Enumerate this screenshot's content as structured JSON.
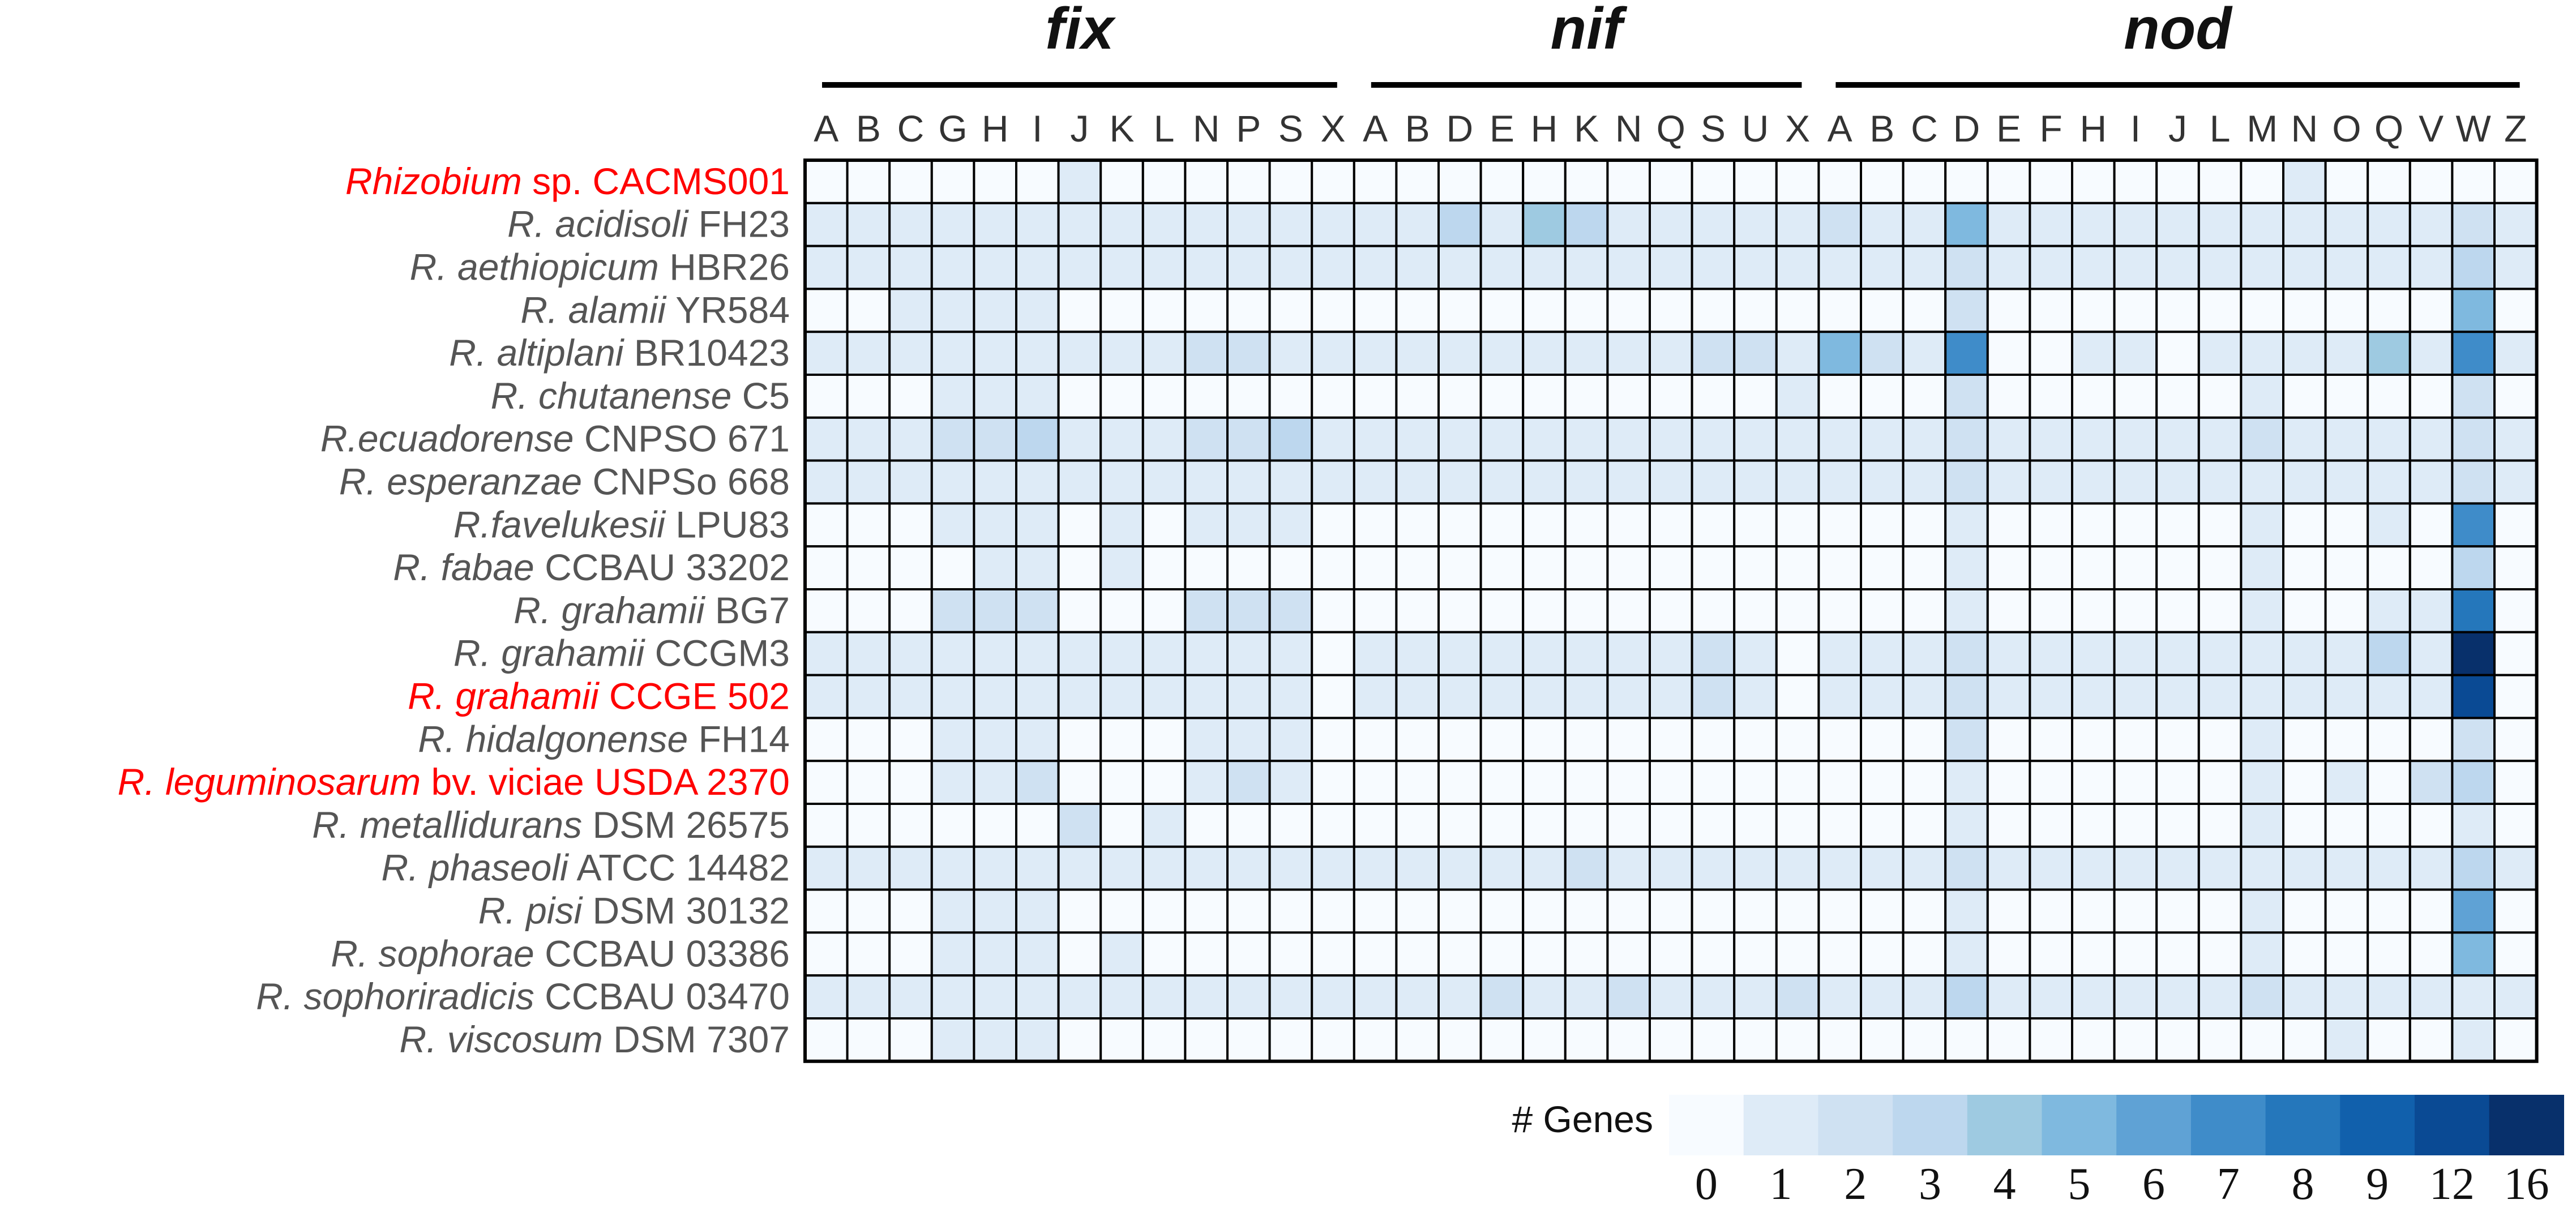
{
  "chart_data": {
    "type": "heatmap",
    "groups": [
      {
        "label": "fix",
        "genes": [
          "A",
          "B",
          "C",
          "G",
          "H",
          "I",
          "J",
          "K",
          "L",
          "N",
          "P",
          "S",
          "X"
        ]
      },
      {
        "label": "nif",
        "genes": [
          "A",
          "B",
          "D",
          "E",
          "H",
          "K",
          "N",
          "Q",
          "S",
          "U",
          "X"
        ]
      },
      {
        "label": "nod",
        "genes": [
          "A",
          "B",
          "C",
          "D",
          "E",
          "F",
          "H",
          "I",
          "J",
          "L",
          "M",
          "N",
          "O",
          "Q",
          "V",
          "W",
          "Z"
        ]
      }
    ],
    "rows": [
      {
        "name": "Rhizobium",
        "strain": "sp. CACMS001",
        "highlight": true
      },
      {
        "name": "R. acidisoli",
        "strain": "FH23",
        "highlight": false
      },
      {
        "name": "R. aethiopicum",
        "strain": "HBR26",
        "highlight": false
      },
      {
        "name": "R. alamii",
        "strain": "YR584",
        "highlight": false
      },
      {
        "name": "R. altiplani",
        "strain": "BR10423",
        "highlight": false
      },
      {
        "name": "R. chutanense",
        "strain": "C5",
        "highlight": false
      },
      {
        "name": "R.ecuadorense",
        "strain": "CNPSO 671",
        "highlight": false
      },
      {
        "name": "R. esperanzae",
        "strain": "CNPSo 668",
        "highlight": false
      },
      {
        "name": "R.favelukesii",
        "strain": "LPU83",
        "highlight": false
      },
      {
        "name": "R. fabae",
        "strain": "CCBAU 33202",
        "highlight": false
      },
      {
        "name": "R. grahamii",
        "strain": "BG7",
        "highlight": false
      },
      {
        "name": "R. grahamii",
        "strain": "CCGM3",
        "highlight": false
      },
      {
        "name": "R. grahamii",
        "strain": "CCGE 502",
        "highlight": true
      },
      {
        "name": "R. hidalgonense",
        "strain": "FH14",
        "highlight": false
      },
      {
        "name": "R. leguminosarum",
        "strain": "bv. viciae USDA 2370",
        "highlight": true
      },
      {
        "name": "R. metallidurans",
        "strain": "DSM 26575",
        "highlight": false
      },
      {
        "name": "R. phaseoli",
        "strain": "ATCC 14482",
        "highlight": false
      },
      {
        "name": "R. pisi",
        "strain": "DSM 30132",
        "highlight": false
      },
      {
        "name": "R. sophorae",
        "strain": "CCBAU 03386",
        "highlight": false
      },
      {
        "name": "R. sophoriradicis",
        "strain": "CCBAU 03470",
        "highlight": false
      },
      {
        "name": "R. viscosum",
        "strain": "DSM 7307",
        "highlight": false
      }
    ],
    "values": [
      [
        0,
        0,
        0,
        0,
        0,
        0,
        1,
        0,
        0,
        0,
        0,
        0,
        0,
        0,
        0,
        0,
        0,
        0,
        0,
        0,
        0,
        0,
        0,
        0,
        0,
        0,
        0,
        0,
        0,
        0,
        0,
        0,
        0,
        0,
        0,
        1,
        0,
        0,
        0,
        0,
        0
      ],
      [
        1,
        1,
        1,
        1,
        1,
        1,
        1,
        1,
        1,
        1,
        1,
        1,
        1,
        1,
        1,
        3,
        1,
        4,
        3,
        1,
        1,
        1,
        1,
        1,
        2,
        1,
        1,
        5,
        1,
        1,
        1,
        1,
        1,
        1,
        1,
        1,
        1,
        1,
        1,
        2,
        1
      ],
      [
        1,
        1,
        1,
        1,
        1,
        1,
        1,
        1,
        1,
        1,
        1,
        1,
        1,
        1,
        1,
        1,
        1,
        1,
        1,
        1,
        1,
        1,
        1,
        1,
        1,
        1,
        1,
        2,
        1,
        1,
        1,
        1,
        1,
        1,
        1,
        1,
        1,
        1,
        1,
        3,
        1
      ],
      [
        0,
        0,
        1,
        1,
        1,
        1,
        0,
        0,
        0,
        0,
        0,
        0,
        0,
        0,
        0,
        0,
        0,
        0,
        0,
        0,
        0,
        0,
        0,
        0,
        0,
        0,
        0,
        2,
        0,
        0,
        0,
        0,
        0,
        0,
        0,
        0,
        0,
        0,
        0,
        5,
        0
      ],
      [
        1,
        1,
        1,
        1,
        1,
        1,
        1,
        1,
        1,
        2,
        2,
        1,
        1,
        1,
        1,
        1,
        1,
        1,
        1,
        1,
        1,
        2,
        2,
        1,
        5,
        2,
        1,
        7,
        0,
        0,
        1,
        1,
        0,
        1,
        1,
        1,
        1,
        4,
        1,
        7,
        1
      ],
      [
        0,
        0,
        0,
        1,
        1,
        1,
        0,
        0,
        0,
        0,
        0,
        0,
        0,
        0,
        0,
        0,
        0,
        0,
        0,
        0,
        0,
        0,
        0,
        1,
        0,
        0,
        0,
        2,
        0,
        0,
        0,
        0,
        0,
        0,
        1,
        0,
        0,
        0,
        0,
        2,
        0
      ],
      [
        1,
        1,
        1,
        2,
        2,
        3,
        1,
        1,
        1,
        2,
        2,
        3,
        1,
        1,
        1,
        1,
        1,
        1,
        1,
        1,
        1,
        1,
        1,
        1,
        1,
        1,
        1,
        2,
        1,
        1,
        1,
        1,
        1,
        1,
        2,
        1,
        1,
        1,
        1,
        2,
        1
      ],
      [
        1,
        1,
        1,
        1,
        1,
        1,
        1,
        1,
        1,
        1,
        1,
        1,
        1,
        1,
        1,
        1,
        1,
        1,
        1,
        1,
        1,
        1,
        1,
        1,
        1,
        1,
        1,
        2,
        1,
        1,
        1,
        1,
        1,
        1,
        1,
        1,
        1,
        1,
        1,
        2,
        1
      ],
      [
        0,
        0,
        0,
        1,
        1,
        1,
        0,
        1,
        0,
        1,
        1,
        1,
        0,
        0,
        0,
        0,
        0,
        0,
        0,
        0,
        0,
        0,
        0,
        0,
        0,
        0,
        0,
        1,
        0,
        0,
        0,
        0,
        0,
        0,
        1,
        0,
        0,
        1,
        0,
        7,
        0
      ],
      [
        0,
        0,
        0,
        0,
        1,
        1,
        0,
        1,
        0,
        0,
        0,
        0,
        0,
        0,
        0,
        0,
        0,
        0,
        0,
        0,
        0,
        0,
        0,
        0,
        0,
        0,
        0,
        1,
        0,
        0,
        0,
        0,
        0,
        0,
        1,
        0,
        0,
        0,
        0,
        3,
        0
      ],
      [
        0,
        0,
        0,
        2,
        2,
        2,
        0,
        0,
        0,
        2,
        2,
        2,
        0,
        0,
        0,
        0,
        0,
        0,
        0,
        0,
        0,
        0,
        0,
        0,
        0,
        0,
        0,
        1,
        0,
        0,
        0,
        0,
        0,
        0,
        1,
        0,
        0,
        1,
        1,
        8,
        0
      ],
      [
        1,
        1,
        1,
        1,
        1,
        1,
        1,
        1,
        1,
        1,
        1,
        1,
        0,
        1,
        1,
        1,
        1,
        1,
        1,
        1,
        1,
        2,
        1,
        0,
        1,
        1,
        1,
        2,
        1,
        1,
        1,
        1,
        1,
        1,
        1,
        1,
        1,
        3,
        1,
        16,
        0
      ],
      [
        1,
        1,
        1,
        1,
        1,
        1,
        1,
        1,
        1,
        1,
        1,
        1,
        0,
        1,
        1,
        1,
        1,
        1,
        1,
        1,
        1,
        2,
        1,
        0,
        1,
        1,
        1,
        2,
        1,
        1,
        1,
        1,
        1,
        1,
        1,
        1,
        1,
        1,
        1,
        12,
        0
      ],
      [
        0,
        0,
        0,
        1,
        1,
        1,
        0,
        0,
        0,
        1,
        1,
        1,
        0,
        0,
        0,
        0,
        0,
        0,
        0,
        0,
        0,
        0,
        0,
        0,
        0,
        0,
        0,
        2,
        0,
        0,
        0,
        0,
        0,
        0,
        1,
        0,
        0,
        0,
        0,
        2,
        0
      ],
      [
        0,
        0,
        0,
        1,
        1,
        2,
        0,
        0,
        0,
        1,
        2,
        1,
        0,
        0,
        0,
        0,
        0,
        0,
        0,
        0,
        0,
        0,
        0,
        0,
        0,
        0,
        0,
        1,
        0,
        0,
        0,
        0,
        0,
        0,
        1,
        0,
        1,
        0,
        2,
        3,
        0
      ],
      [
        0,
        0,
        0,
        0,
        0,
        0,
        2,
        0,
        1,
        0,
        0,
        0,
        0,
        0,
        0,
        0,
        0,
        0,
        0,
        0,
        0,
        0,
        0,
        0,
        0,
        0,
        0,
        1,
        0,
        0,
        0,
        0,
        0,
        0,
        1,
        0,
        0,
        0,
        0,
        1,
        0
      ],
      [
        1,
        1,
        1,
        1,
        1,
        1,
        1,
        1,
        1,
        1,
        1,
        1,
        1,
        1,
        1,
        1,
        1,
        1,
        2,
        1,
        1,
        1,
        1,
        1,
        1,
        1,
        1,
        2,
        1,
        1,
        1,
        1,
        1,
        1,
        1,
        1,
        1,
        1,
        1,
        3,
        1
      ],
      [
        0,
        0,
        0,
        1,
        1,
        1,
        0,
        0,
        0,
        0,
        0,
        0,
        0,
        0,
        0,
        0,
        0,
        0,
        0,
        0,
        0,
        0,
        0,
        0,
        0,
        0,
        0,
        1,
        0,
        0,
        0,
        0,
        0,
        0,
        1,
        0,
        0,
        0,
        0,
        6,
        0
      ],
      [
        0,
        0,
        0,
        1,
        1,
        1,
        0,
        1,
        0,
        0,
        0,
        0,
        0,
        0,
        0,
        0,
        0,
        0,
        0,
        0,
        0,
        0,
        0,
        0,
        0,
        0,
        0,
        1,
        0,
        0,
        0,
        0,
        0,
        0,
        1,
        0,
        0,
        0,
        0,
        5,
        0
      ],
      [
        1,
        1,
        1,
        1,
        1,
        1,
        1,
        1,
        1,
        1,
        1,
        1,
        1,
        1,
        1,
        1,
        2,
        1,
        1,
        2,
        1,
        1,
        1,
        2,
        1,
        1,
        1,
        3,
        1,
        1,
        1,
        1,
        1,
        1,
        2,
        1,
        1,
        1,
        1,
        1,
        1
      ],
      [
        0,
        0,
        0,
        1,
        1,
        1,
        0,
        0,
        0,
        0,
        0,
        0,
        0,
        0,
        0,
        0,
        0,
        0,
        0,
        0,
        0,
        0,
        0,
        0,
        0,
        0,
        0,
        0,
        0,
        0,
        0,
        0,
        0,
        0,
        0,
        0,
        1,
        0,
        0,
        1,
        0
      ]
    ],
    "legend": {
      "title": "# Genes",
      "levels": [
        0,
        1,
        2,
        3,
        4,
        5,
        6,
        7,
        8,
        9,
        12,
        16
      ],
      "colors": [
        "#f7fbff",
        "#deebf7",
        "#cfe1f2",
        "#bdd7ee",
        "#9ecae1",
        "#7fb9df",
        "#5fa2d5",
        "#3f8cc9",
        "#2577bb",
        "#1160ac",
        "#0a4a94",
        "#08306b"
      ]
    },
    "highlight_color": "#ff0000",
    "label_color": "#555555"
  }
}
